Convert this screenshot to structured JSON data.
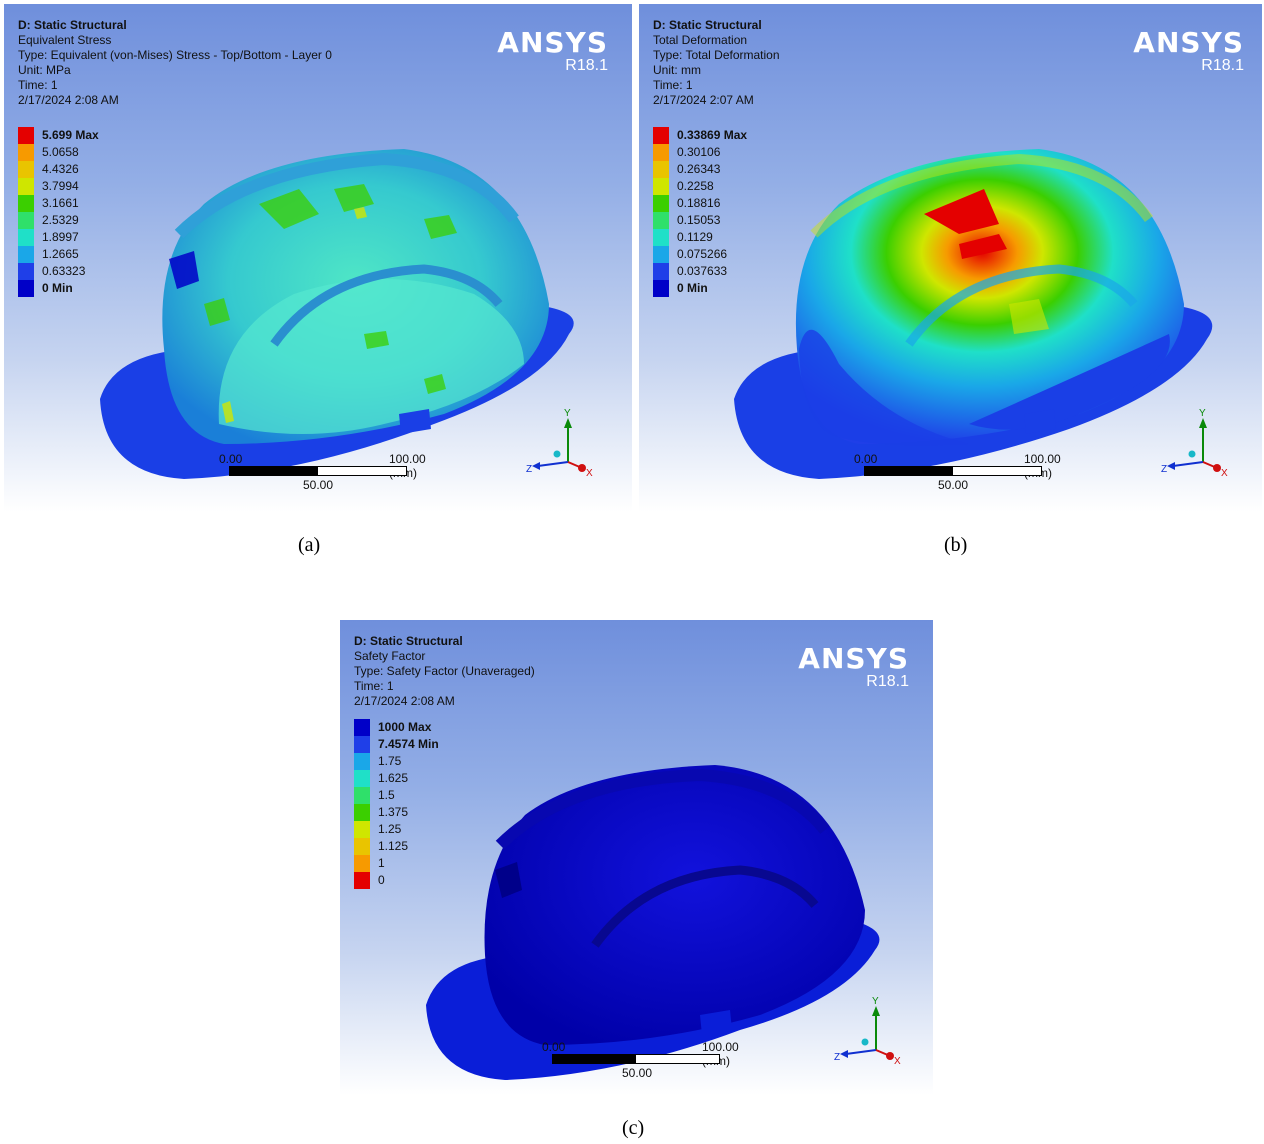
{
  "panels": [
    {
      "info": [
        "D: Static Structural",
        "Equivalent Stress",
        "Type: Equivalent (von-Mises) Stress - Top/Bottom - Layer 0",
        "Unit: MPa",
        "Time: 1",
        "2/17/2024 2:08 AM"
      ],
      "brand": {
        "name": "ANSYS",
        "version": "R18.1"
      },
      "legend": [
        {
          "label": "5.699 Max",
          "color": "#e40000",
          "bold": true
        },
        {
          "label": "5.0658",
          "color": "#f79a00",
          "bold": false
        },
        {
          "label": "4.4326",
          "color": "#e9c400",
          "bold": false
        },
        {
          "label": "3.7994",
          "color": "#cfe600",
          "bold": false
        },
        {
          "label": "3.1661",
          "color": "#3bcf00",
          "bold": false
        },
        {
          "label": "2.5329",
          "color": "#2fe06a",
          "bold": false
        },
        {
          "label": "1.8997",
          "color": "#1fe0c8",
          "bold": false
        },
        {
          "label": "1.2665",
          "color": "#1aa7e8",
          "bold": false
        },
        {
          "label": "0.63323",
          "color": "#1f3fe8",
          "bold": false
        },
        {
          "label": "0 Min",
          "color": "#0000c8",
          "bold": true
        }
      ],
      "scale": {
        "start": "0.00",
        "end": "100.00 (mm)",
        "mid": "50.00"
      },
      "axes": {
        "x": "X",
        "y": "Y",
        "z": "Z"
      },
      "caption": "(a)"
    },
    {
      "info": [
        "D: Static Structural",
        "Total Deformation",
        "Type: Total Deformation",
        "Unit: mm",
        "Time: 1",
        "2/17/2024 2:07 AM"
      ],
      "brand": {
        "name": "ANSYS",
        "version": "R18.1"
      },
      "legend": [
        {
          "label": "0.33869 Max",
          "color": "#e40000",
          "bold": true
        },
        {
          "label": "0.30106",
          "color": "#f79a00",
          "bold": false
        },
        {
          "label": "0.26343",
          "color": "#e9c400",
          "bold": false
        },
        {
          "label": "0.2258",
          "color": "#cfe600",
          "bold": false
        },
        {
          "label": "0.18816",
          "color": "#3bcf00",
          "bold": false
        },
        {
          "label": "0.15053",
          "color": "#2fe06a",
          "bold": false
        },
        {
          "label": "0.1129",
          "color": "#1fe0c8",
          "bold": false
        },
        {
          "label": "0.075266",
          "color": "#1aa7e8",
          "bold": false
        },
        {
          "label": "0.037633",
          "color": "#1f3fe8",
          "bold": false
        },
        {
          "label": "0 Min",
          "color": "#0000c8",
          "bold": true
        }
      ],
      "scale": {
        "start": "0.00",
        "end": "100.00 (mm)",
        "mid": "50.00"
      },
      "axes": {
        "x": "X",
        "y": "Y",
        "z": "Z"
      },
      "caption": "(b)"
    },
    {
      "info": [
        "D: Static Structural",
        "Safety Factor",
        "Type: Safety Factor (Unaveraged)",
        "Time: 1",
        "2/17/2024 2:08 AM"
      ],
      "brand": {
        "name": "ANSYS",
        "version": "R18.1"
      },
      "legend": [
        {
          "label": "1000 Max",
          "color": "#0000c8",
          "bold": true
        },
        {
          "label": "7.4574 Min",
          "color": "#1f3fe8",
          "bold": true
        },
        {
          "label": "1.75",
          "color": "#1aa7e8",
          "bold": false
        },
        {
          "label": "1.625",
          "color": "#1fe0c8",
          "bold": false
        },
        {
          "label": "1.5",
          "color": "#2fe06a",
          "bold": false
        },
        {
          "label": "1.375",
          "color": "#3bcf00",
          "bold": false
        },
        {
          "label": "1.25",
          "color": "#cfe600",
          "bold": false
        },
        {
          "label": "1.125",
          "color": "#e9c400",
          "bold": false
        },
        {
          "label": "1",
          "color": "#f79a00",
          "bold": false
        },
        {
          "label": "0",
          "color": "#e40000",
          "bold": false
        }
      ],
      "scale": {
        "start": "0.00",
        "end": "100.00 (mm)",
        "mid": "50.00"
      },
      "axes": {
        "x": "X",
        "y": "Y",
        "z": "Z"
      },
      "caption": "(c)"
    }
  ]
}
